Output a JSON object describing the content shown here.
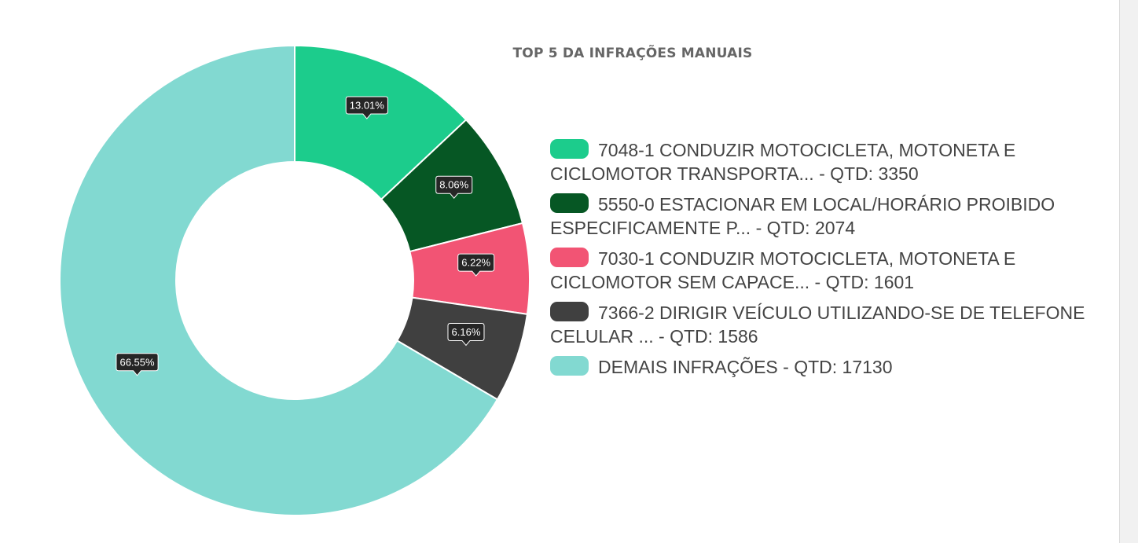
{
  "chart_data": {
    "type": "pie",
    "title": "TOP 5 DA INFRAÇÕES MANUAIS",
    "donut": true,
    "slices": [
      {
        "label": "7048-1 CONDUZIR MOTOCICLETA, MOTONETA E CICLOMOTOR TRANSPORTA... - QTD: 3350",
        "value": 13.01,
        "data_label": "13.01%",
        "color": "#1ccc8c"
      },
      {
        "label": "5550-0 ESTACIONAR EM LOCAL/HORÁRIO PROIBIDO ESPECIFICAMENTE P... - QTD: 2074",
        "value": 8.06,
        "data_label": "8.06%",
        "color": "#065724"
      },
      {
        "label": "7030-1 CONDUZIR MOTOCICLETA, MOTONETA E CICLOMOTOR SEM CAPACE... - QTD: 1601",
        "value": 6.22,
        "data_label": "6.22%",
        "color": "#f25474"
      },
      {
        "label": "7366-2 DIRIGIR VEÍCULO UTILIZANDO-SE DE TELEFONE CELULAR ... - QTD: 1586",
        "value": 6.16,
        "data_label": "6.16%",
        "color": "#404040"
      },
      {
        "label": "DEMAIS INFRAÇÕES - QTD: 17130",
        "value": 66.55,
        "data_label": "66.55%",
        "color": "#82d9d1"
      }
    ],
    "legend_position": "right"
  }
}
